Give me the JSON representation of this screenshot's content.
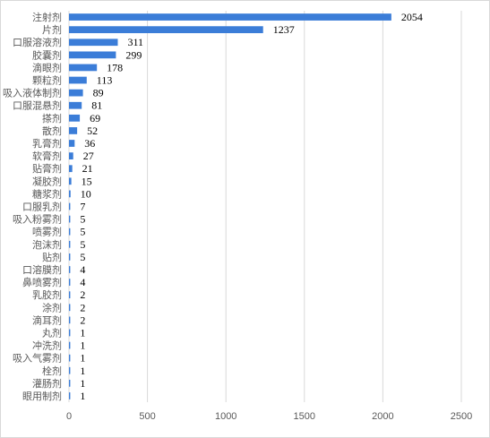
{
  "chart_data": {
    "type": "bar",
    "orientation": "horizontal",
    "categories": [
      "注射剂",
      "片剂",
      "口服溶液剂",
      "胶囊剂",
      "滴眼剂",
      "颗粒剂",
      "吸入液体制剂",
      "口服混悬剂",
      "搽剂",
      "散剂",
      "乳膏剂",
      "软膏剂",
      "贴膏剂",
      "凝胶剂",
      "糖浆剂",
      "口服乳剂",
      "吸入粉雾剂",
      "喷雾剂",
      "泡沫剂",
      "贴剂",
      "口溶膜剂",
      "鼻喷雾剂",
      "乳胶剂",
      "涂剂",
      "滴耳剂",
      "丸剂",
      "冲洗剂",
      "吸入气雾剂",
      "栓剂",
      "灌肠剂",
      "眼用制剂"
    ],
    "values": [
      2054,
      1237,
      311,
      299,
      178,
      113,
      89,
      81,
      69,
      52,
      36,
      27,
      21,
      15,
      10,
      7,
      5,
      5,
      5,
      5,
      4,
      4,
      2,
      2,
      2,
      1,
      1,
      1,
      1,
      1,
      1
    ],
    "xticks": [
      0,
      500,
      1000,
      1500,
      2000,
      2500
    ],
    "xlim": [
      0,
      2500
    ],
    "bar_color": "#3b7dd8",
    "grid": "vertical",
    "legend": "none"
  }
}
